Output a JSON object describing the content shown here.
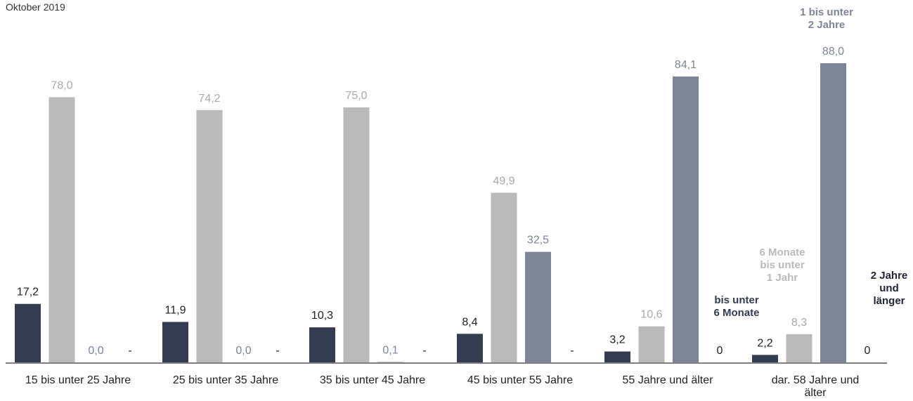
{
  "subtitle": "Oktober 2019",
  "chart_data": {
    "type": "bar",
    "title": "",
    "subtitle": "Oktober 2019",
    "xlabel": "",
    "ylabel": "",
    "ylim": [
      0,
      100
    ],
    "grid": false,
    "legend": "inline-labels",
    "categories": [
      [
        "15 bis unter 25 Jahre"
      ],
      [
        "25 bis unter 35 Jahre"
      ],
      [
        "35 bis unter 45 Jahre"
      ],
      [
        "45 bis unter 55 Jahre"
      ],
      [
        "55 Jahre und älter"
      ],
      [
        "dar. 58 Jahre und",
        "älter"
      ]
    ],
    "series": [
      {
        "name": [
          "bis unter",
          "6 Monate"
        ],
        "color": "#343c52",
        "values": [
          17.2,
          11.9,
          10.3,
          8.4,
          3.2,
          2.2
        ],
        "labels": [
          "17,2",
          "11,9",
          "10,3",
          "8,4",
          "3,2",
          "2,2"
        ]
      },
      {
        "name": [
          "6 Monate",
          "bis unter",
          "1 Jahr"
        ],
        "color": "#bababa",
        "values": [
          78.0,
          74.2,
          75.0,
          49.9,
          10.6,
          8.3
        ],
        "labels": [
          "78,0",
          "74,2",
          "75,0",
          "49,9",
          "10,6",
          "8,3"
        ]
      },
      {
        "name": [
          "1 bis unter",
          "2 Jahre"
        ],
        "color": "#7d8597",
        "values": [
          0.0,
          0.0,
          0.1,
          32.5,
          84.1,
          88.0
        ],
        "labels": [
          "0,0",
          "0,0",
          "0,1",
          "32,5",
          "84,1",
          "88,0"
        ]
      },
      {
        "name": [
          "2 Jahre",
          "und",
          "länger"
        ],
        "color": "#1f2333",
        "values": [
          null,
          null,
          null,
          null,
          0,
          0
        ],
        "labels": [
          "-",
          "-",
          "-",
          "-",
          "0",
          "0"
        ]
      }
    ]
  }
}
